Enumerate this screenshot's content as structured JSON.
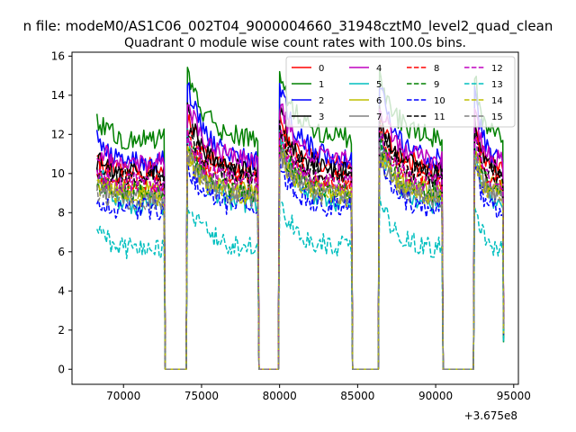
{
  "figure": {
    "suptitle": "n file: modeM0/AS1C06_002T04_9000004660_31948cztM0_level2_quad_clean",
    "title": "Quadrant 0 module wise count rates with 100.0s bins.",
    "offset_text": "+3.675e8"
  },
  "chart_data": {
    "type": "line",
    "title": "Quadrant 0 module wise count rates with 100.0s bins.",
    "xlabel": "",
    "ylabel": "",
    "xlim": [
      66700,
      95300
    ],
    "ylim": [
      -0.77,
      16.2
    ],
    "x_offset": 367500000,
    "xticks": [
      70000,
      75000,
      80000,
      85000,
      90000,
      95000
    ],
    "xtick_labels": [
      "70000",
      "75000",
      "80000",
      "85000",
      "90000",
      "95000"
    ],
    "yticks": [
      0,
      2,
      4,
      6,
      8,
      10,
      12,
      14,
      16
    ],
    "ytick_labels": [
      "0",
      "2",
      "4",
      "6",
      "8",
      "10",
      "12",
      "14",
      "16"
    ],
    "grid": false,
    "legend": {
      "placement": "top-right",
      "columns": 4
    },
    "time_segments": [
      {
        "start": 68300,
        "end": 72600
      },
      {
        "start": 74100,
        "end": 78600
      },
      {
        "start": 80000,
        "end": 84600
      },
      {
        "start": 86400,
        "end": 90400
      },
      {
        "start": 92500,
        "end": 94300
      }
    ],
    "gap_value": 0,
    "series": [
      {
        "name": "0",
        "color": "#ff0000",
        "style": "solid",
        "level": 10.3,
        "start_level": 10.5,
        "peak": 12.8,
        "alpha": 1
      },
      {
        "name": "1",
        "color": "#008000",
        "style": "solid",
        "level": 11.8,
        "start_level": 12.6,
        "peak": 15.1,
        "alpha": 1
      },
      {
        "name": "2",
        "color": "#0000ff",
        "style": "solid",
        "level": 10.6,
        "start_level": 11.7,
        "peak": 14.7,
        "alpha": 1
      },
      {
        "name": "3",
        "color": "#000000",
        "style": "solid",
        "level": 10.0,
        "start_level": 10.7,
        "peak": 13.2,
        "alpha": 1
      },
      {
        "name": "4",
        "color": "#bf00bf",
        "style": "solid",
        "level": 10.6,
        "start_level": 11.2,
        "peak": 13.6,
        "alpha": 1
      },
      {
        "name": "5",
        "color": "#00bfbf",
        "style": "solid",
        "level": 8.4,
        "start_level": 10.2,
        "peak": 11.8,
        "alpha": 1
      },
      {
        "name": "6",
        "color": "#bfbf00",
        "style": "solid",
        "level": 9.1,
        "start_level": 9.6,
        "peak": 11.4,
        "alpha": 1
      },
      {
        "name": "7",
        "color": "#808080",
        "style": "solid",
        "level": 8.9,
        "start_level": 9.3,
        "peak": 11.0,
        "alpha": 1
      },
      {
        "name": "8",
        "color": "#ff0000",
        "style": "dashed",
        "level": 9.6,
        "start_level": 10.1,
        "peak": 12.2,
        "alpha": 1
      },
      {
        "name": "9",
        "color": "#008000",
        "style": "dashed",
        "level": 9.0,
        "start_level": 9.5,
        "peak": 11.6,
        "alpha": 1
      },
      {
        "name": "10",
        "color": "#0000ff",
        "style": "dashed",
        "level": 8.2,
        "start_level": 8.4,
        "peak": 10.5,
        "alpha": 1
      },
      {
        "name": "11",
        "color": "#000000",
        "style": "dashed",
        "level": 9.8,
        "start_level": 10.2,
        "peak": 12.4,
        "alpha": 1
      },
      {
        "name": "12",
        "color": "#bf00bf",
        "style": "dashed",
        "level": 9.5,
        "start_level": 10.0,
        "peak": 12.0,
        "alpha": 1
      },
      {
        "name": "13",
        "color": "#00bfbf",
        "style": "dashed",
        "level": 6.2,
        "start_level": 6.9,
        "peak": 8.6,
        "alpha": 1
      },
      {
        "name": "14",
        "color": "#bfbf00",
        "style": "dashed",
        "level": 8.8,
        "start_level": 9.3,
        "peak": 11.1,
        "alpha": 1
      },
      {
        "name": "15",
        "color": "#808080",
        "style": "dashed",
        "level": 8.7,
        "start_level": 9.0,
        "peak": 11.3,
        "alpha": 1
      }
    ]
  }
}
